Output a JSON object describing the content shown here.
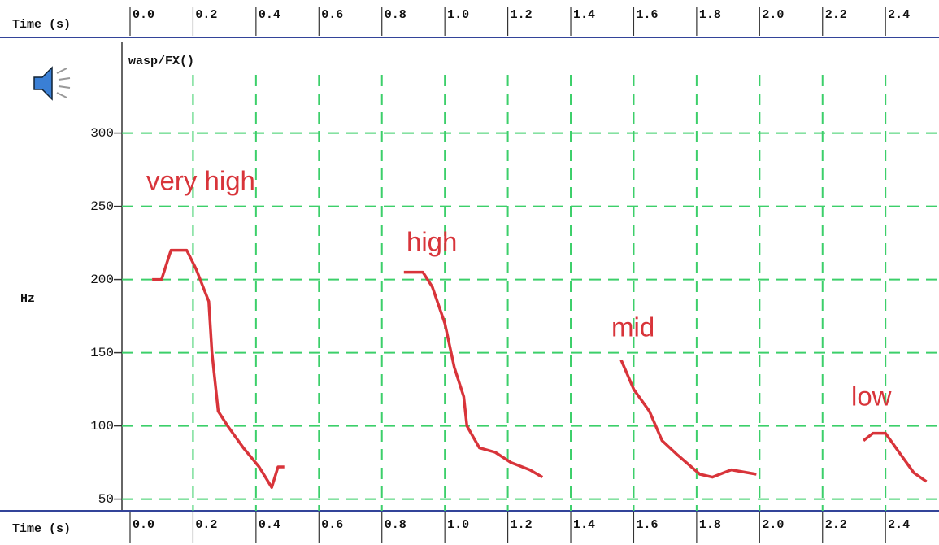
{
  "chart_data": {
    "type": "line",
    "title": "wasp/FX()",
    "x_label": "Time (s)",
    "y_label": "Hz",
    "xlim": [
      0,
      2.57
    ],
    "ylim": [
      42,
      362
    ],
    "xticks": [
      {
        "value": 0,
        "label": "0.0"
      },
      0.2,
      0.4,
      0.6,
      0.8,
      {
        "value": 1,
        "label": "1.0"
      },
      1.2,
      1.4,
      1.6,
      1.8,
      {
        "value": 2,
        "label": "2.0"
      },
      2.2,
      2.4
    ],
    "yticks": [
      50,
      100,
      150,
      200,
      250,
      300
    ],
    "grid": true,
    "series": [
      {
        "name": "very high",
        "color": "#d8343a",
        "x": [
          0.07,
          0.1,
          0.13,
          0.18,
          0.21,
          0.25,
          0.26,
          0.28,
          0.31,
          0.36,
          0.41,
          0.45,
          0.47,
          0.49
        ],
        "values": [
          200,
          200,
          220,
          220,
          207,
          185,
          150,
          110,
          100,
          85,
          72,
          58,
          72,
          72
        ]
      },
      {
        "name": "high",
        "color": "#d8343a",
        "x": [
          0.87,
          0.93,
          0.96,
          1.0,
          1.03,
          1.06,
          1.07,
          1.11,
          1.16,
          1.21,
          1.27,
          1.31
        ],
        "values": [
          205,
          205,
          195,
          170,
          140,
          120,
          100,
          85,
          82,
          75,
          70,
          65
        ]
      },
      {
        "name": "mid",
        "color": "#d8343a",
        "x": [
          1.56,
          1.6,
          1.65,
          1.69,
          1.74,
          1.81,
          1.85,
          1.91,
          1.99
        ],
        "values": [
          145,
          125,
          110,
          90,
          80,
          67,
          65,
          70,
          67
        ]
      },
      {
        "name": "low",
        "color": "#d8343a",
        "x": [
          2.33,
          2.36,
          2.4,
          2.45,
          2.49,
          2.53
        ],
        "values": [
          90,
          95,
          95,
          80,
          68,
          62
        ]
      }
    ]
  }
}
